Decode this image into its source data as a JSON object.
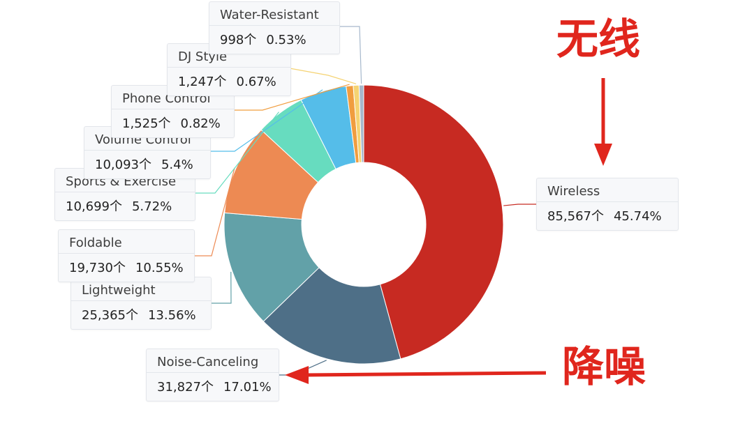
{
  "chart_data": {
    "type": "pie",
    "unit": "个",
    "slices": [
      {
        "label": "Wireless",
        "count_text": "85,567个",
        "pct_text": "45.74%",
        "value": 85567,
        "color": "#c72a22"
      },
      {
        "label": "Noise-Canceling",
        "count_text": "31,827个",
        "pct_text": "17.01%",
        "value": 31827,
        "color": "#4e6f87"
      },
      {
        "label": "Lightweight",
        "count_text": "25,365个",
        "pct_text": "13.56%",
        "value": 25365,
        "color": "#62a1a8"
      },
      {
        "label": "Foldable",
        "count_text": "19,730个",
        "pct_text": "10.55%",
        "value": 19730,
        "color": "#ed8a53"
      },
      {
        "label": "Sports & Exercise",
        "count_text": "10,699个",
        "pct_text": "5.72%",
        "value": 10699,
        "color": "#67dcbf"
      },
      {
        "label": "Volume Control",
        "count_text": "10,093个",
        "pct_text": "5.4%",
        "value": 10093,
        "color": "#55bde9"
      },
      {
        "label": "Phone Control",
        "count_text": "1,525个",
        "pct_text": "0.82%",
        "value": 1525,
        "color": "#f09d3f"
      },
      {
        "label": "DJ Style",
        "count_text": "1,247个",
        "pct_text": "0.67%",
        "value": 1247,
        "color": "#f5d372"
      },
      {
        "label": "Water-Resistant",
        "count_text": "998个",
        "pct_text": "0.53%",
        "value": 998,
        "color": "#a6b8cc"
      }
    ]
  },
  "annotations": {
    "wireless_cn": "无线",
    "noise_cn": "降噪",
    "color": "#e0261d"
  }
}
